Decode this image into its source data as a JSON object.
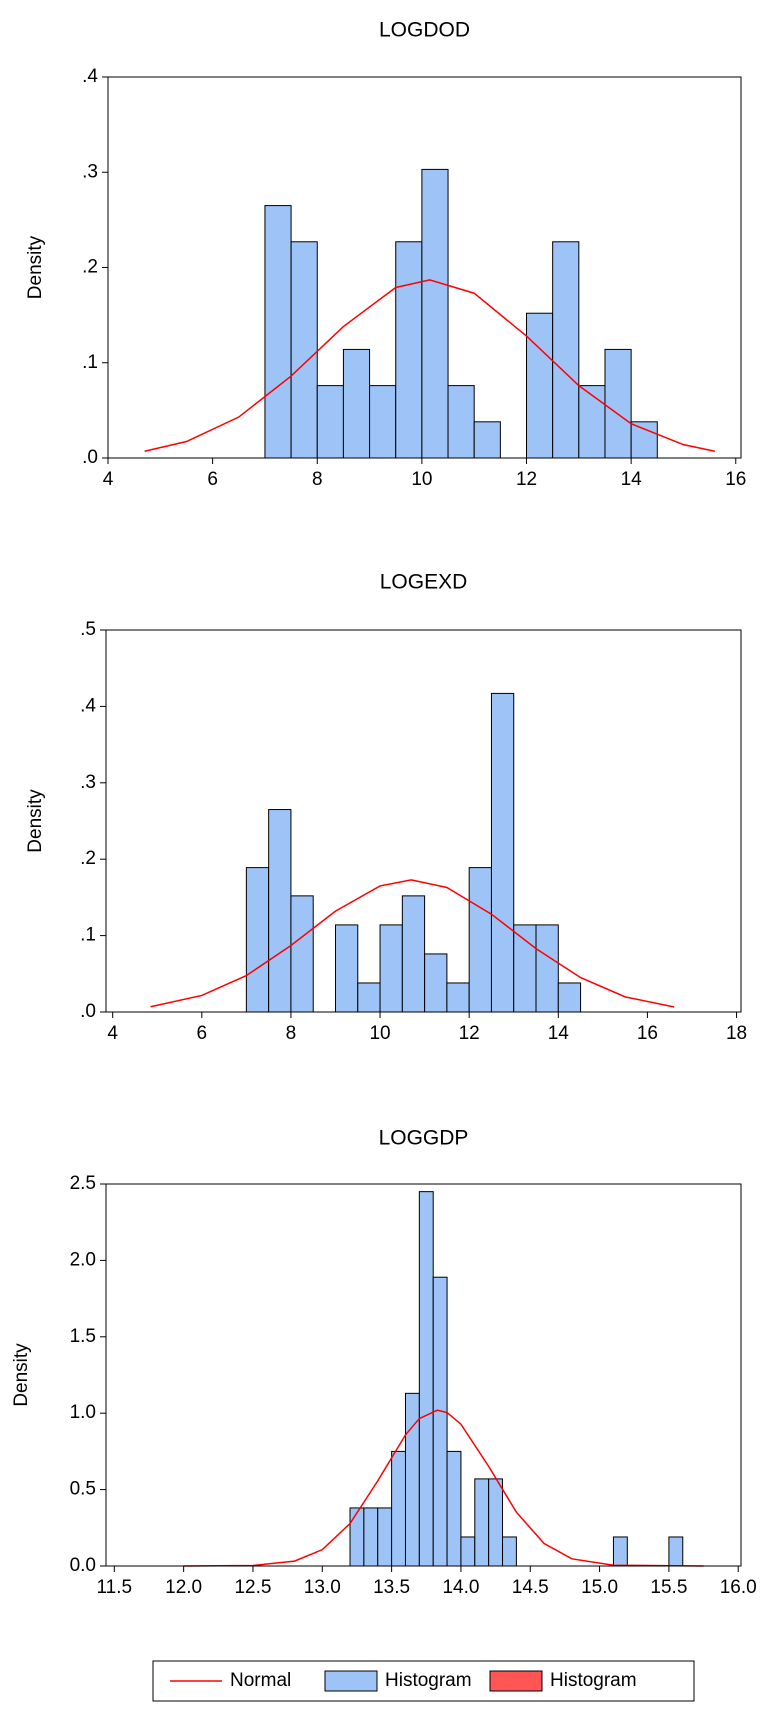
{
  "chart_data": [
    {
      "type": "histogram",
      "title": "LOGDOD",
      "ylabel": "Density",
      "color": "#9ec3f7",
      "bins": [
        7.0,
        7.5,
        8.0,
        8.5,
        9.0,
        9.5,
        10.0,
        10.5,
        11.0,
        11.5,
        12.0,
        12.5,
        13.0,
        13.5,
        14.0,
        14.5
      ],
      "values": [
        0.265,
        0.227,
        0.076,
        0.114,
        0.076,
        0.227,
        0.303,
        0.076,
        0.038,
        0,
        0.152,
        0.227,
        0.076,
        0.114,
        0.038
      ],
      "normal": {
        "color": "#ff0000",
        "x": [
          4.7,
          5.5,
          6.5,
          7.5,
          8.5,
          9.5,
          10.15,
          11,
          12,
          13,
          14,
          15,
          15.6
        ],
        "values": [
          0.0071,
          0.0173,
          0.043,
          0.086,
          0.138,
          0.179,
          0.187,
          0.173,
          0.128,
          0.076,
          0.036,
          0.014,
          0.0071
        ]
      },
      "xlim": [
        4,
        16.1
      ],
      "xticks": [
        4,
        6,
        8,
        10,
        12,
        14,
        16
      ],
      "ylim": [
        0,
        0.4
      ],
      "yticks": [
        {
          "value": 0,
          "label": ".0"
        },
        {
          "value": 0.1,
          "label": ".1"
        },
        {
          "value": 0.2,
          "label": ".2"
        },
        {
          "value": 0.3,
          "label": ".3"
        },
        {
          "value": 0.4,
          "label": ".4"
        }
      ]
    },
    {
      "type": "histogram",
      "title": "LOGEXD",
      "ylabel": "Density",
      "color": "#9ec3f7",
      "bins": [
        7.0,
        7.5,
        8.0,
        8.5,
        9.0,
        9.5,
        10.0,
        10.5,
        11.0,
        11.5,
        12.0,
        12.5,
        13.0,
        13.5,
        14.0,
        14.5
      ],
      "values": [
        0.189,
        0.265,
        0.152,
        0,
        0.114,
        0.038,
        0.114,
        0.152,
        0.076,
        0.038,
        0.189,
        0.417,
        0.114,
        0.114,
        0.038
      ],
      "normal": {
        "color": "#ff0000",
        "x": [
          4.85,
          6,
          7,
          8,
          9,
          10,
          10.7,
          11.5,
          12.5,
          13.5,
          14.5,
          15.5,
          16.6
        ],
        "values": [
          0.0069,
          0.0217,
          0.0477,
          0.087,
          0.132,
          0.165,
          0.173,
          0.163,
          0.128,
          0.083,
          0.045,
          0.0198,
          0.0066
        ]
      },
      "xlim": [
        3.85,
        18.1
      ],
      "xticks": [
        4,
        6,
        8,
        10,
        12,
        14,
        16,
        18
      ],
      "ylim": [
        0,
        0.5
      ],
      "yticks": [
        {
          "value": 0,
          "label": ".0"
        },
        {
          "value": 0.1,
          "label": ".1"
        },
        {
          "value": 0.2,
          "label": ".2"
        },
        {
          "value": 0.3,
          "label": ".3"
        },
        {
          "value": 0.4,
          "label": ".4"
        },
        {
          "value": 0.5,
          "label": ".5"
        }
      ]
    },
    {
      "type": "histogram",
      "title": "LOGGDP",
      "ylabel": "Density",
      "color": "#9ec3f7",
      "bins": [
        13.2,
        13.3,
        13.4,
        13.5,
        13.6,
        13.7,
        13.8,
        13.9,
        14.0,
        14.1,
        14.2,
        14.3,
        14.4,
        14.5,
        14.6,
        14.7,
        14.8,
        14.9,
        15.0,
        15.1,
        15.2,
        15.3,
        15.4,
        15.5,
        15.6
      ],
      "values": [
        0.38,
        0.38,
        0.38,
        0.75,
        1.13,
        2.45,
        1.89,
        0.75,
        0.19,
        0.57,
        0.57,
        0.19,
        0,
        0,
        0,
        0,
        0,
        0,
        0,
        0.19,
        0,
        0,
        0,
        0.19
      ],
      "normal": {
        "color": "#ff0000",
        "x": [
          12.0,
          12.5,
          12.8,
          13.0,
          13.2,
          13.4,
          13.6,
          13.7,
          13.83,
          13.9,
          14.0,
          14.2,
          14.4,
          14.6,
          14.8,
          15.1,
          15.75
        ],
        "values": [
          0.0,
          0.003,
          0.032,
          0.107,
          0.278,
          0.557,
          0.858,
          0.965,
          1.02,
          1.004,
          0.928,
          0.652,
          0.352,
          0.147,
          0.047,
          0.005,
          0.0
        ]
      },
      "xlim": [
        11.44,
        16.02
      ],
      "xticks": [
        11.5,
        {
          "value": 12,
          "label": "12.0"
        },
        12.5,
        {
          "value": 13,
          "label": "13.0"
        },
        13.5,
        {
          "value": 14,
          "label": "14.0"
        },
        14.5,
        {
          "value": 15,
          "label": "15.0"
        },
        15.5,
        {
          "value": 16,
          "label": "16.0"
        }
      ],
      "ylim": [
        0,
        2.5
      ],
      "yticks": [
        {
          "value": 0,
          "label": "0.0"
        },
        {
          "value": 0.5,
          "label": "0.5"
        },
        {
          "value": 1,
          "label": "1.0"
        },
        {
          "value": 1.5,
          "label": "1.5"
        },
        {
          "value": 2,
          "label": "2.0"
        },
        2.5
      ]
    }
  ],
  "legend": [
    {
      "name": "Normal",
      "color": "#ff0000",
      "style": "line"
    },
    {
      "name": "Histogram",
      "color": "#9ec3f7",
      "style": "box"
    },
    {
      "name": "Histogram",
      "color": "#ff5555",
      "style": "box"
    }
  ]
}
